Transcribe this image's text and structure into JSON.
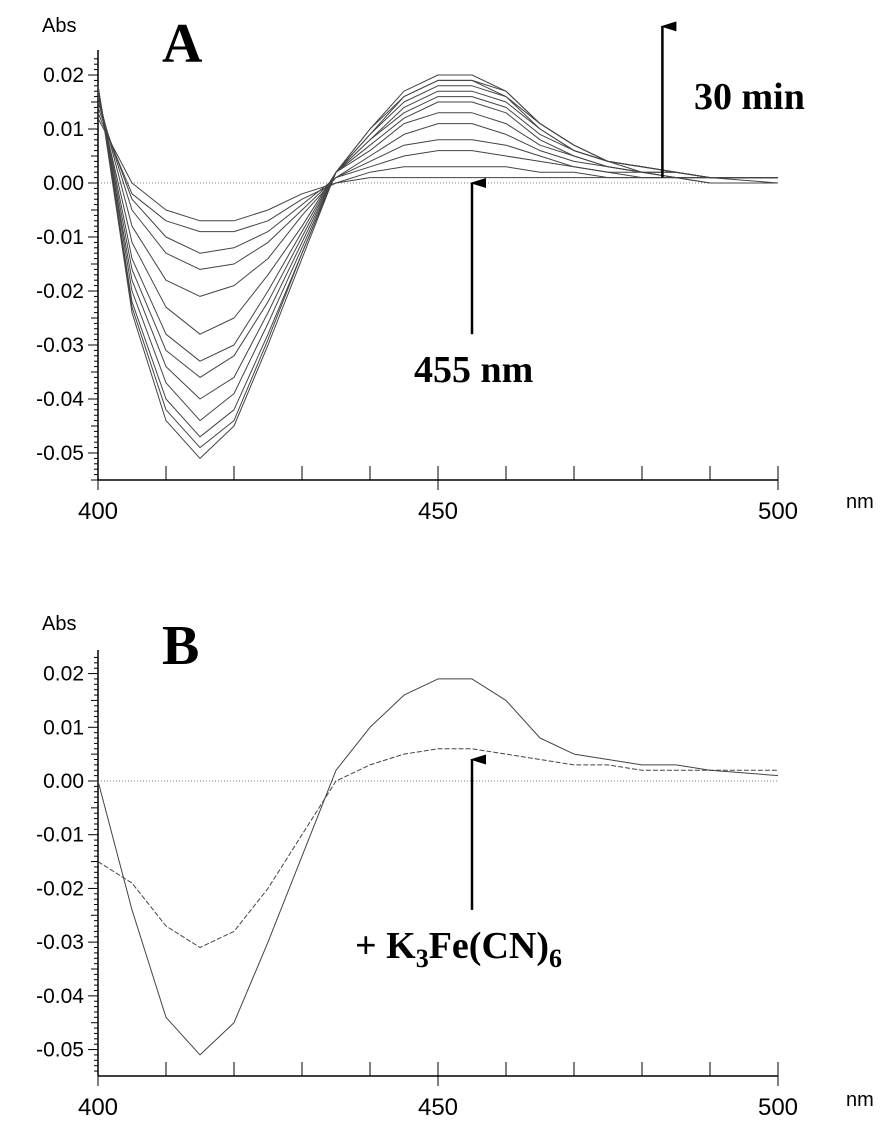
{
  "chart_data": [
    {
      "type": "line",
      "panel_label": "A",
      "ylabel": "Abs",
      "xlabel": "nm",
      "xlim": [
        400,
        500
      ],
      "ylim": [
        -0.055,
        0.024
      ],
      "x_ticks": [
        "400",
        "450",
        "500"
      ],
      "y_ticks": [
        "0.02",
        "0.01",
        "0.00",
        "-0.01",
        "-0.02",
        "-0.03",
        "-0.04",
        "-0.05"
      ],
      "y_tick_values": [
        0.02,
        0.01,
        0.0,
        -0.01,
        -0.02,
        -0.03,
        -0.04,
        -0.05
      ],
      "x": [
        400,
        405,
        410,
        415,
        420,
        425,
        430,
        435,
        440,
        445,
        450,
        455,
        460,
        465,
        470,
        475,
        480,
        485,
        490,
        500
      ],
      "series": [
        {
          "values": [
            0.012,
            0.0,
            -0.005,
            -0.007,
            -0.007,
            -0.005,
            -0.002,
            0.0,
            0.001,
            0.001,
            0.001,
            0.001,
            0.001,
            0.001,
            0.001,
            0.001,
            0.001,
            0.001,
            0.0,
            0.0
          ]
        },
        {
          "values": [
            0.013,
            -0.002,
            -0.007,
            -0.009,
            -0.009,
            -0.007,
            -0.003,
            0.0,
            0.002,
            0.003,
            0.003,
            0.003,
            0.003,
            0.002,
            0.002,
            0.001,
            0.001,
            0.001,
            0.0,
            0.0
          ]
        },
        {
          "values": [
            0.014,
            -0.003,
            -0.01,
            -0.013,
            -0.012,
            -0.009,
            -0.004,
            0.001,
            0.003,
            0.005,
            0.006,
            0.006,
            0.005,
            0.004,
            0.003,
            0.002,
            0.001,
            0.001,
            0.001,
            0.0
          ]
        },
        {
          "values": [
            0.015,
            -0.005,
            -0.013,
            -0.016,
            -0.015,
            -0.011,
            -0.005,
            0.001,
            0.004,
            0.007,
            0.008,
            0.008,
            0.007,
            0.005,
            0.003,
            0.002,
            0.002,
            0.001,
            0.001,
            0.001
          ]
        },
        {
          "values": [
            0.016,
            -0.008,
            -0.018,
            -0.021,
            -0.019,
            -0.014,
            -0.006,
            0.001,
            0.005,
            0.009,
            0.011,
            0.011,
            0.009,
            0.006,
            0.004,
            0.003,
            0.002,
            0.001,
            0.001,
            0.001
          ]
        },
        {
          "values": [
            0.016,
            -0.011,
            -0.023,
            -0.028,
            -0.025,
            -0.017,
            -0.008,
            0.002,
            0.006,
            0.011,
            0.013,
            0.013,
            0.011,
            0.007,
            0.005,
            0.003,
            0.002,
            0.001,
            0.001,
            0.001
          ]
        },
        {
          "values": [
            0.017,
            -0.014,
            -0.028,
            -0.033,
            -0.03,
            -0.02,
            -0.009,
            0.002,
            0.007,
            0.012,
            0.015,
            0.015,
            0.013,
            0.008,
            0.005,
            0.003,
            0.002,
            0.002,
            0.001,
            0.001
          ]
        },
        {
          "values": [
            0.017,
            -0.016,
            -0.031,
            -0.036,
            -0.032,
            -0.022,
            -0.01,
            0.002,
            0.008,
            0.013,
            0.016,
            0.016,
            0.014,
            0.009,
            0.006,
            0.004,
            0.002,
            0.002,
            0.001,
            0.001
          ]
        },
        {
          "values": [
            0.017,
            -0.018,
            -0.034,
            -0.04,
            -0.036,
            -0.024,
            -0.011,
            0.002,
            0.008,
            0.014,
            0.017,
            0.017,
            0.015,
            0.01,
            0.006,
            0.004,
            0.003,
            0.002,
            0.001,
            0.001
          ]
        },
        {
          "values": [
            0.018,
            -0.02,
            -0.037,
            -0.044,
            -0.039,
            -0.026,
            -0.012,
            0.002,
            0.009,
            0.015,
            0.018,
            0.018,
            0.016,
            0.01,
            0.006,
            0.004,
            0.003,
            0.002,
            0.001,
            0.001
          ]
        },
        {
          "values": [
            0.018,
            -0.022,
            -0.04,
            -0.047,
            -0.042,
            -0.028,
            -0.013,
            0.002,
            0.009,
            0.016,
            0.019,
            0.019,
            0.016,
            0.011,
            0.007,
            0.004,
            0.003,
            0.002,
            0.001,
            0.001
          ]
        },
        {
          "values": [
            0.018,
            -0.023,
            -0.042,
            -0.049,
            -0.044,
            -0.029,
            -0.013,
            0.002,
            0.01,
            0.016,
            0.019,
            0.019,
            0.017,
            0.011,
            0.007,
            0.004,
            0.003,
            0.002,
            0.001,
            0.001
          ]
        },
        {
          "values": [
            0.018,
            -0.024,
            -0.044,
            -0.051,
            -0.045,
            -0.03,
            -0.014,
            0.002,
            0.01,
            0.017,
            0.02,
            0.02,
            0.017,
            0.011,
            0.007,
            0.004,
            0.003,
            0.002,
            0.001,
            0.001
          ]
        }
      ],
      "baseline": 0.0,
      "annotations": [
        {
          "text": "30 min",
          "arrow": "up",
          "arrow_x_data": 483,
          "arrow_from": 0.001,
          "arrow_to": 0.029
        },
        {
          "text": "455 nm",
          "arrow": "up",
          "arrow_x_data": 455,
          "arrow_from": -0.028,
          "arrow_to": 0.0
        }
      ]
    },
    {
      "type": "line",
      "panel_label": "B",
      "ylabel": "Abs",
      "xlabel": "nm",
      "xlim": [
        400,
        500
      ],
      "ylim": [
        -0.055,
        0.024
      ],
      "x_ticks": [
        "400",
        "450",
        "500"
      ],
      "y_ticks": [
        "0.02",
        "0.01",
        "0.00",
        "-0.01",
        "-0.02",
        "-0.03",
        "-0.04",
        "-0.05"
      ],
      "y_tick_values": [
        0.02,
        0.01,
        0.0,
        -0.01,
        -0.02,
        -0.03,
        -0.04,
        -0.05
      ],
      "x": [
        400,
        405,
        410,
        415,
        420,
        425,
        430,
        435,
        440,
        445,
        450,
        455,
        460,
        465,
        470,
        475,
        480,
        485,
        490,
        500
      ],
      "series": [
        {
          "style": "solid",
          "values": [
            0.0,
            -0.024,
            -0.044,
            -0.051,
            -0.045,
            -0.03,
            -0.014,
            0.002,
            0.01,
            0.016,
            0.019,
            0.019,
            0.015,
            0.008,
            0.005,
            0.004,
            0.003,
            0.003,
            0.002,
            0.001
          ]
        },
        {
          "style": "dashed",
          "values": [
            -0.015,
            -0.019,
            -0.027,
            -0.031,
            -0.028,
            -0.02,
            -0.01,
            0.0,
            0.003,
            0.005,
            0.006,
            0.006,
            0.005,
            0.004,
            0.003,
            0.003,
            0.002,
            0.002,
            0.002,
            0.002
          ]
        }
      ],
      "baseline": 0.0,
      "annotations": [
        {
          "text_main": "+ K",
          "sub1": "3",
          "text_mid": "Fe(CN)",
          "sub2": "6",
          "arrow": "up",
          "arrow_x_data": 455,
          "arrow_from": -0.024,
          "arrow_to": 0.004
        }
      ]
    }
  ]
}
